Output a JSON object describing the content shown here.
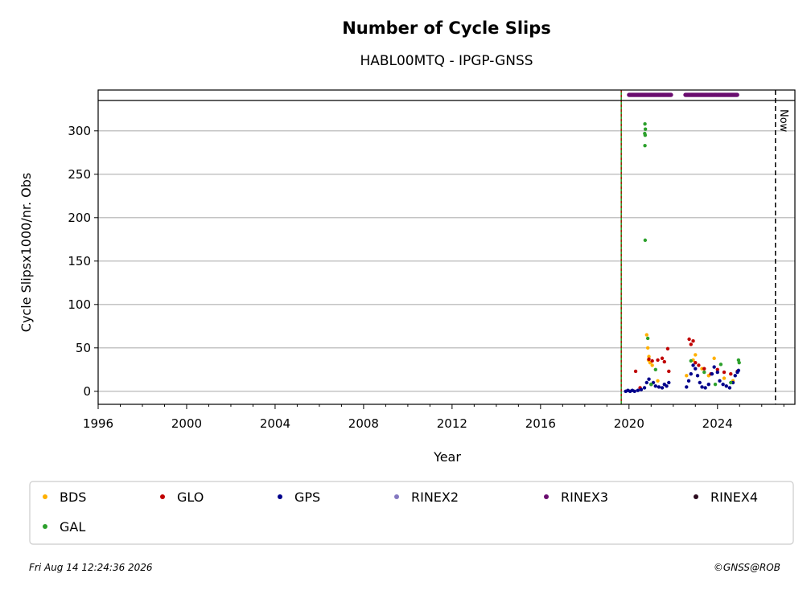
{
  "chart_data": {
    "type": "scatter",
    "title": "Number of Cycle Slips",
    "subtitle": "HABL00MTQ - IPGP-GNSS",
    "xlabel": "Year",
    "ylabel": "Cycle Slipsx1000/nr. Obs",
    "xlim": [
      1996,
      2027.5
    ],
    "ylim": [
      -15,
      335
    ],
    "x_ticks": [
      1996,
      2000,
      2004,
      2008,
      2012,
      2016,
      2020,
      2024
    ],
    "y_ticks": [
      0,
      50,
      100,
      150,
      200,
      250,
      300
    ],
    "grid": "horizontal",
    "rinex_band_y": 330,
    "start_line_x": 2019.65,
    "now_line_x": 2026.62,
    "now_label": "Now",
    "legend_position": "below",
    "series": [
      {
        "name": "BDS",
        "color": "#ffb000",
        "points": [
          [
            2020.8,
            65
          ],
          [
            2020.85,
            50
          ],
          [
            2020.9,
            40
          ],
          [
            2020.88,
            36
          ],
          [
            2020.95,
            33
          ],
          [
            2021.05,
            30
          ],
          [
            2021.3,
            12
          ],
          [
            2022.9,
            36
          ],
          [
            2023.0,
            42
          ],
          [
            2023.3,
            26
          ],
          [
            2023.6,
            18
          ],
          [
            2023.85,
            38
          ],
          [
            2024.3,
            15
          ],
          [
            2024.7,
            12
          ],
          [
            2022.6,
            18
          ]
        ]
      },
      {
        "name": "GLO",
        "color": "#c00000",
        "points": [
          [
            2020.3,
            23
          ],
          [
            2020.5,
            4
          ],
          [
            2020.9,
            37
          ],
          [
            2021.05,
            35
          ],
          [
            2021.3,
            36
          ],
          [
            2021.5,
            38
          ],
          [
            2021.6,
            34
          ],
          [
            2021.75,
            49
          ],
          [
            2021.8,
            23
          ],
          [
            2022.72,
            60
          ],
          [
            2022.8,
            54
          ],
          [
            2022.9,
            58
          ],
          [
            2023.0,
            33
          ],
          [
            2023.15,
            30
          ],
          [
            2023.4,
            26
          ],
          [
            2023.7,
            20
          ],
          [
            2024.0,
            25
          ],
          [
            2024.3,
            22
          ],
          [
            2024.6,
            20
          ],
          [
            2024.9,
            23
          ]
        ]
      },
      {
        "name": "GPS",
        "color": "#00008b",
        "points": [
          [
            2019.85,
            0
          ],
          [
            2019.95,
            1
          ],
          [
            2020.05,
            0
          ],
          [
            2020.15,
            1
          ],
          [
            2020.25,
            0
          ],
          [
            2020.4,
            1
          ],
          [
            2020.55,
            2
          ],
          [
            2020.7,
            4
          ],
          [
            2020.8,
            10
          ],
          [
            2020.9,
            14
          ],
          [
            2021.0,
            8
          ],
          [
            2021.1,
            10
          ],
          [
            2021.2,
            6
          ],
          [
            2021.35,
            5
          ],
          [
            2021.5,
            4
          ],
          [
            2021.6,
            8
          ],
          [
            2021.7,
            6
          ],
          [
            2021.8,
            10
          ],
          [
            2022.6,
            5
          ],
          [
            2022.7,
            12
          ],
          [
            2022.8,
            20
          ],
          [
            2022.9,
            30
          ],
          [
            2023.0,
            26
          ],
          [
            2023.1,
            18
          ],
          [
            2023.2,
            10
          ],
          [
            2023.3,
            5
          ],
          [
            2023.45,
            4
          ],
          [
            2023.6,
            8
          ],
          [
            2023.75,
            20
          ],
          [
            2023.85,
            28
          ],
          [
            2024.0,
            22
          ],
          [
            2024.1,
            12
          ],
          [
            2024.25,
            8
          ],
          [
            2024.4,
            6
          ],
          [
            2024.55,
            4
          ],
          [
            2024.7,
            10
          ],
          [
            2024.8,
            18
          ],
          [
            2024.9,
            22
          ],
          [
            2024.95,
            24
          ]
        ]
      },
      {
        "name": "RINEX2",
        "color": "#8478c0",
        "points": []
      },
      {
        "name": "RINEX3",
        "color": "#6a0d6f",
        "segments": [
          [
            2020.0,
            2021.9
          ],
          [
            2022.55,
            2024.9
          ]
        ]
      },
      {
        "name": "RINEX4",
        "color": "#2b0a1e",
        "points": []
      },
      {
        "name": "GAL",
        "color": "#2ca02c",
        "points": [
          [
            2020.72,
            308
          ],
          [
            2020.74,
            302
          ],
          [
            2020.71,
            297
          ],
          [
            2020.73,
            295
          ],
          [
            2020.72,
            283
          ],
          [
            2020.73,
            174
          ],
          [
            2020.85,
            61
          ],
          [
            2021.2,
            25
          ],
          [
            2021.0,
            8
          ],
          [
            2022.8,
            35
          ],
          [
            2023.4,
            22
          ],
          [
            2024.15,
            31
          ],
          [
            2024.95,
            36
          ],
          [
            2024.98,
            33
          ],
          [
            2024.6,
            10
          ],
          [
            2023.9,
            8
          ]
        ]
      }
    ]
  },
  "footer": {
    "timestamp": "Fri Aug 14 12:24:36 2026",
    "copyright": "©GNSS@ROB"
  }
}
